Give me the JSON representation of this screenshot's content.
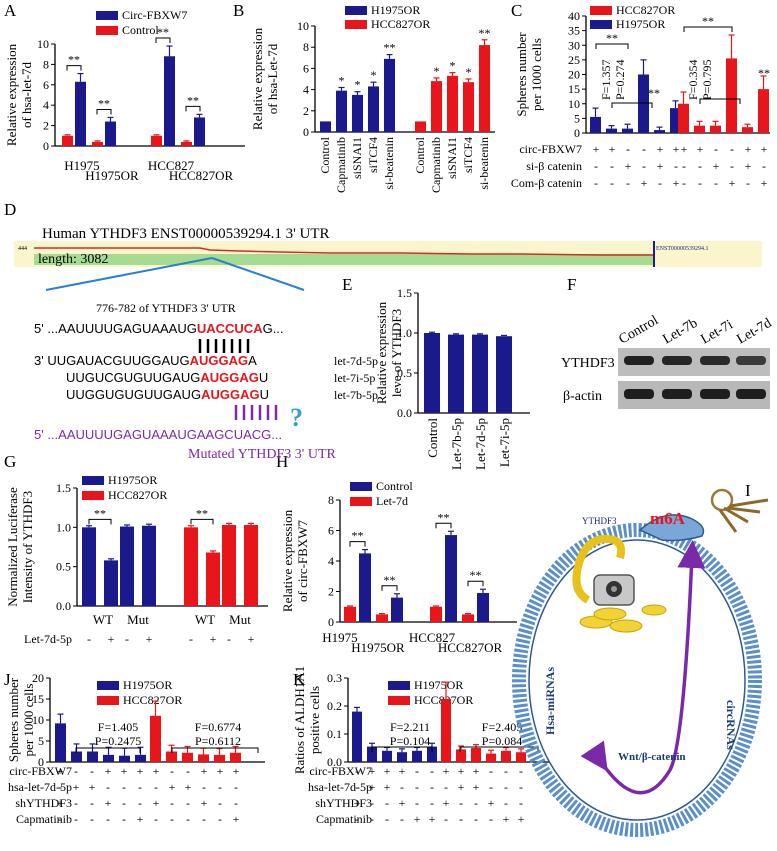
{
  "colors": {
    "blue": "#1a1a8c",
    "red": "#e8161b",
    "purple": "#7a2aa8",
    "wavy": "#d72a2a",
    "utr_bg": "#fbf5cc",
    "utr_green": "#a6dc92",
    "seq_red": "#e8161b",
    "ring": "#5a8fc8"
  },
  "panels": {
    "A": "A",
    "B": "B",
    "C": "C",
    "D": "D",
    "E": "E",
    "F": "F",
    "G": "G",
    "H": "H",
    "I": "I",
    "J": "J",
    "K": "K"
  },
  "chart_data": [
    {
      "id": "A",
      "type": "bar",
      "ylabel_lines": [
        "Relative expression",
        "of hsa-let-7d"
      ],
      "ylim": [
        0,
        10
      ],
      "yticks": [
        0,
        2,
        4,
        6,
        8,
        10
      ],
      "legend": [
        {
          "name": "Circ-FBXW7",
          "color": "blue"
        },
        {
          "name": "Control",
          "color": "red"
        }
      ],
      "groups": [
        "H1975",
        "H1975OR",
        "HCC827",
        "HCC827OR"
      ],
      "series": [
        {
          "name": "Control",
          "values": [
            1.0,
            0.4,
            1.0,
            0.4
          ]
        },
        {
          "name": "Circ-FBXW7",
          "values": [
            6.3,
            2.4,
            8.8,
            2.8
          ]
        }
      ],
      "errors": [
        [
          0.1,
          0.1,
          0.1,
          0.1
        ],
        [
          0.8,
          0.4,
          1.0,
          0.3
        ]
      ],
      "significance": [
        "**",
        "**",
        "**",
        "**"
      ]
    },
    {
      "id": "B",
      "type": "bar",
      "ylabel_lines": [
        "Relative expression",
        "of hsa-Let-7d"
      ],
      "ylim": [
        0,
        10
      ],
      "yticks": [
        0,
        2,
        4,
        6,
        8,
        10
      ],
      "legend": [
        {
          "name": "H1975OR",
          "color": "blue"
        },
        {
          "name": "HCC827OR",
          "color": "red"
        }
      ],
      "categories": [
        "Control",
        "Capmatinib",
        "siSNAI1",
        "siTCF4",
        "si-beatenin"
      ],
      "series": [
        {
          "name": "H1975OR",
          "values": [
            1.0,
            3.9,
            3.5,
            4.3,
            6.9
          ]
        },
        {
          "name": "HCC827OR",
          "values": [
            1.0,
            4.8,
            5.3,
            4.7,
            8.2
          ]
        }
      ],
      "errors": [
        [
          0,
          0.3,
          0.3,
          0.4,
          0.4
        ],
        [
          0,
          0.3,
          0.3,
          0.3,
          0.5
        ]
      ],
      "significance": [
        [
          "",
          "*",
          "*",
          "*",
          "**"
        ],
        [
          "",
          "*",
          "*",
          "*",
          "**"
        ]
      ]
    },
    {
      "id": "C",
      "type": "bar",
      "ylabel_lines": [
        "Spheres number",
        "per 1000 cells"
      ],
      "ylim": [
        0,
        40
      ],
      "yticks": [
        0,
        5,
        10,
        15,
        20,
        25,
        30,
        35,
        40
      ],
      "legend": [
        {
          "name": "HCC827OR",
          "color": "red"
        },
        {
          "name": "H1975OR",
          "color": "blue"
        }
      ],
      "series": [
        {
          "name": "H1975OR",
          "values": [
            5.5,
            1.5,
            1.5,
            20.0,
            1.0,
            8.5
          ]
        },
        {
          "name": "HCC827OR",
          "values": [
            10.0,
            2.5,
            2.5,
            25.5,
            2.0,
            15.0
          ]
        }
      ],
      "errors": [
        [
          3.0,
          1.0,
          1.5,
          5.0,
          1.0,
          2.5
        ],
        [
          4.0,
          1.5,
          1.5,
          8.0,
          1.0,
          4.5
        ]
      ],
      "stats": [
        {
          "F": "F=1.357",
          "P": "P=0.274"
        },
        {
          "F": "F=0.354",
          "P": "P=0.795"
        }
      ],
      "significance": [
        "**",
        "**",
        "**",
        "**",
        "**"
      ],
      "factor_rows": [
        {
          "label": "circ-FBXW7",
          "marks": [
            "+",
            "+",
            "-",
            "-",
            "+",
            "+",
            "+",
            "+",
            "-",
            "-",
            "+",
            "+"
          ]
        },
        {
          "label": "si-β catenin",
          "marks": [
            "-",
            "-",
            "+",
            "-",
            "+",
            "-",
            "-",
            "-",
            "+",
            "-",
            "+",
            "-"
          ]
        },
        {
          "label": "Com-β catenin",
          "marks": [
            "-",
            "-",
            "-",
            "+",
            "-",
            "+",
            "-",
            "-",
            "-",
            "+",
            "-",
            "+"
          ]
        }
      ]
    },
    {
      "id": "E",
      "type": "bar",
      "ylabel_lines": [
        "Relative expression",
        "leve of YTHDF3"
      ],
      "ylim": [
        0,
        1.5
      ],
      "yticks": [
        "0.0",
        "0.5",
        "1.0",
        "1.5"
      ],
      "categories": [
        "Control",
        "Let-7b-5p",
        "Let-7d-5p",
        "Let-7i-5p"
      ],
      "values": [
        1.0,
        0.98,
        0.98,
        0.96
      ]
    },
    {
      "id": "G",
      "type": "bar",
      "ylabel_lines": [
        "Normalized Luciferase",
        "Intensity of YTHDF3"
      ],
      "ylim": [
        0,
        1.5
      ],
      "yticks": [
        "0.0",
        "0.5",
        "1.0",
        "1.5"
      ],
      "legend": [
        {
          "name": "H1975OR",
          "color": "blue"
        },
        {
          "name": "HCC827OR",
          "color": "red"
        }
      ],
      "groups": [
        "WT",
        "Mut",
        "WT",
        "Mut"
      ],
      "series": [
        {
          "name": "H1975OR",
          "values": [
            1.0,
            0.58,
            1.01,
            1.02
          ]
        },
        {
          "name": "HCC827OR",
          "values": [
            1.0,
            0.68,
            1.03,
            1.03
          ]
        }
      ],
      "xfactor": {
        "label": "Let-7d-5p",
        "marks": [
          "-",
          "+",
          "-",
          "+",
          "-",
          "+",
          "-",
          "+"
        ]
      },
      "significance": [
        "**",
        "**"
      ]
    },
    {
      "id": "H",
      "type": "bar",
      "ylabel_lines": [
        "Relative expression",
        "of circ-FBXW7"
      ],
      "ylim": [
        0,
        8
      ],
      "yticks": [
        0,
        2,
        4,
        6,
        8
      ],
      "legend": [
        {
          "name": "Control",
          "color": "blue"
        },
        {
          "name": "Let-7d",
          "color": "red"
        }
      ],
      "groups": [
        "H1975",
        "H1975OR",
        "HCC827",
        "HCC827OR"
      ],
      "series": [
        {
          "name": "Let-7d",
          "values": [
            1.0,
            0.5,
            1.0,
            0.5
          ]
        },
        {
          "name": "Control",
          "values": [
            4.5,
            1.6,
            5.7,
            1.9
          ]
        }
      ],
      "significance": [
        "**",
        "**",
        "**",
        "**"
      ]
    },
    {
      "id": "J",
      "type": "bar",
      "ylabel_lines": [
        "Spheres number",
        "per 1000 cells"
      ],
      "ylim": [
        0,
        20
      ],
      "yticks": [
        0,
        5,
        10,
        15,
        20
      ],
      "legend": [
        {
          "name": "H1975OR",
          "color": "blue"
        },
        {
          "name": "HCC827OR",
          "color": "red"
        }
      ],
      "series": [
        {
          "name": "H1975OR",
          "values": [
            9.2,
            2.5,
            2.5,
            1.7,
            1.5,
            1.7
          ]
        },
        {
          "name": "HCC827OR",
          "values": [
            11.0,
            2.5,
            2.2,
            1.8,
            1.7,
            2.2
          ]
        }
      ],
      "stats": [
        {
          "F": "F=1.405",
          "P": "P=0.2475"
        },
        {
          "F": "F=0.6774",
          "P": "P=0.6112"
        }
      ],
      "factor_rows": [
        {
          "label": "circ-FBXW7",
          "marks": [
            "+",
            "-",
            "-",
            "+",
            "+",
            "+",
            "+",
            "-",
            "-",
            "+",
            "+",
            "+"
          ]
        },
        {
          "label": "hsa-let-7d-5p",
          "marks": [
            "-",
            "+",
            "+",
            "-",
            "-",
            "-",
            "-",
            "+",
            "+",
            "-",
            "-",
            "-"
          ]
        },
        {
          "label": "shYTHDF3",
          "marks": [
            "+",
            "-",
            "-",
            "+",
            "-",
            "-",
            "+",
            "-",
            "-",
            "+",
            "-",
            "-"
          ]
        },
        {
          "label": "Capmatinib",
          "marks": [
            "-",
            "-",
            "-",
            "-",
            "-",
            "+",
            "-",
            "-",
            "-",
            "-",
            "-",
            "+"
          ]
        }
      ]
    },
    {
      "id": "K",
      "type": "bar",
      "ylabel_lines": [
        "Ratios of ALDH1A1",
        "positive cells"
      ],
      "ylim": [
        0,
        0.3
      ],
      "yticks": [
        "0.0",
        "0.1",
        "0.2",
        "0.3"
      ],
      "legend": [
        {
          "name": "H1975OR",
          "color": "blue"
        },
        {
          "name": "HCC827OR",
          "color": "red"
        }
      ],
      "series": [
        {
          "name": "H1975OR",
          "values": [
            0.18,
            0.055,
            0.04,
            0.035,
            0.04,
            0.055
          ]
        },
        {
          "name": "HCC827OR",
          "values": [
            0.225,
            0.045,
            0.05,
            0.03,
            0.04,
            0.035
          ]
        }
      ],
      "stats": [
        {
          "F": "F=2.211",
          "P": "P=0.104"
        },
        {
          "F": "F=2.405",
          "P": "P=0.084"
        }
      ],
      "factor_rows": [
        {
          "label": "circ-FBXW7",
          "marks": [
            "-",
            "+",
            "+",
            "+",
            "-",
            "-",
            "+",
            "+",
            "+",
            "-",
            "-",
            "-"
          ]
        },
        {
          "label": "hsa-let-7d-5p",
          "marks": [
            "-",
            "+",
            "+",
            "-",
            "-",
            "-",
            "-",
            "+",
            "+",
            "-",
            "-",
            "-"
          ]
        },
        {
          "label": "shYTHDF3",
          "marks": [
            "+",
            "-",
            "-",
            "+",
            "-",
            "-",
            "+",
            "-",
            "-",
            "+",
            "-",
            "-"
          ]
        },
        {
          "label": "Capmatinib",
          "marks": [
            "-",
            "-",
            "-",
            "-",
            "+",
            "+",
            "-",
            "-",
            "-",
            "-",
            "+",
            "+"
          ]
        }
      ]
    }
  ],
  "panel_d": {
    "title": "Human YTHDF3   ENST00000539294.1    3' UTR",
    "small_left": "444",
    "small_right": "ENST00000539294.1",
    "length": "length: 3082",
    "range_label": "776-782 of YTHDF3 3' UTR",
    "utr_seq": {
      "prefix": "5'  ...AAUUUUGAGUAAAUG",
      "site": "UACCUCA",
      "suffix": "G..."
    },
    "mirnas": [
      {
        "prefix": "3'   UUGAUACGUUGGAUG",
        "site": "AUGGAG",
        "suffix": "A",
        "name": "let-7d-5p"
      },
      {
        "prefix": "UUGUCGUGUUGAUG",
        "site": "AUGGAG",
        "suffix": "U",
        "name": "let-7i-5p"
      },
      {
        "prefix": "UUGGUGUGUUGAUG",
        "site": "AUGGAG",
        "suffix": "U",
        "name": "let-7b-5p"
      }
    ],
    "mutated_seq": "5'  ...AAUUUUGAGUAAAUGAAGCUACG...",
    "mutated_label": "Mutated YTHDF3 3' UTR",
    "question": "?"
  },
  "panel_f": {
    "lanes": [
      "Control",
      "Let-7b",
      "Let-7i",
      "Let-7d"
    ],
    "rows": [
      "YTHDF3",
      "β-actin"
    ]
  },
  "panel_i": {
    "m6a": "m6A",
    "ythdf3": "YTHDF3",
    "left_label": "Hsa-miRNAs",
    "right_label": "circRNAs",
    "center_label": "Wnt/β-catenin"
  }
}
